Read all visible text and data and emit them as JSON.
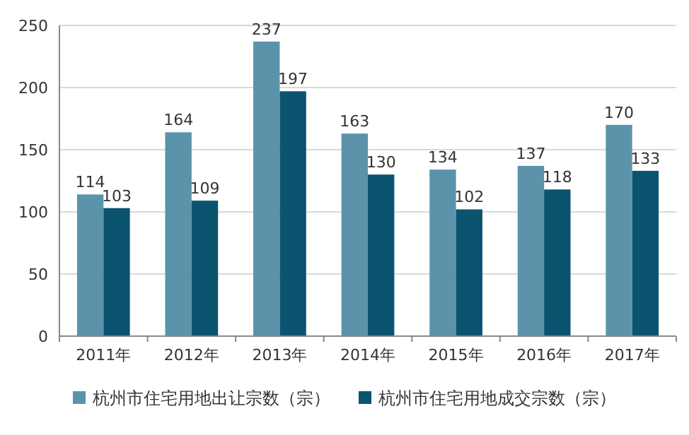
{
  "chart_data": {
    "type": "bar",
    "categories": [
      "2011年",
      "2012年",
      "2013年",
      "2014年",
      "2015年",
      "2016年",
      "2017年"
    ],
    "series": [
      {
        "name": "杭州市住宅用地出让宗数（宗）",
        "color": "#5b93ab",
        "values": [
          114,
          164,
          237,
          163,
          134,
          137,
          170
        ]
      },
      {
        "name": "杭州市住宅用地成交宗数（宗）",
        "color": "#0b5470",
        "values": [
          103,
          109,
          197,
          130,
          102,
          118,
          133
        ]
      }
    ],
    "ylim": [
      0,
      250
    ],
    "yticks": [
      0,
      50,
      100,
      150,
      200,
      250
    ],
    "grid": "y",
    "legend": "bottom",
    "data_labels": true
  }
}
